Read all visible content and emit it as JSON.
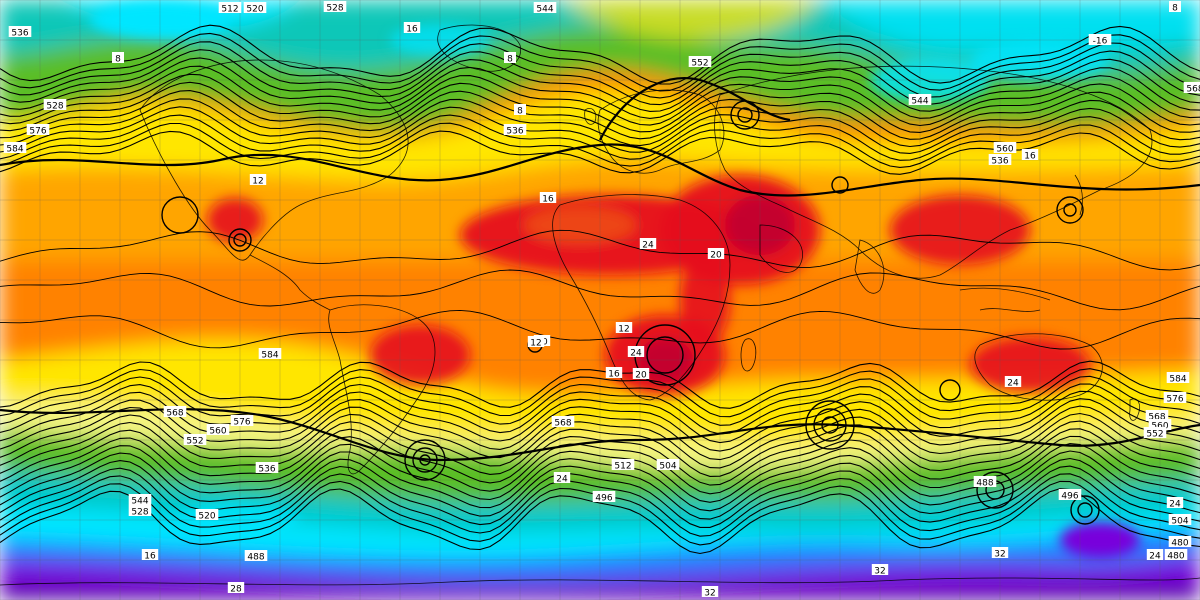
{
  "map": {
    "colors": {
      "deep_red": "#c00030",
      "red": "#e60a1e",
      "orange_red": "#f05a14",
      "orange": "#ff8200",
      "light_orange": "#ffa500",
      "yellow": "#ffe600",
      "pale_yellow": "#f5f582",
      "lime": "#c8dc28",
      "green": "#5abe28",
      "teal": "#00c8c8",
      "cyan": "#00e6ff",
      "blue": "#1e78ff",
      "purple": "#7800dc",
      "deep_purple": "#4b00a0",
      "contour": "#000000",
      "grid": "#5a5a5a"
    },
    "contour_labels": [
      "512",
      "520",
      "528",
      "544",
      "8",
      "536",
      "16",
      "552",
      "568",
      "8",
      "8",
      "536",
      "544",
      "536",
      "528",
      "560",
      "16",
      "576",
      "584",
      "8",
      "12",
      "16",
      "24",
      "20",
      "12",
      "12",
      "16",
      "20",
      "24",
      "24",
      "584",
      "568",
      "576",
      "560",
      "552",
      "544",
      "528",
      "520",
      "512",
      "504",
      "496",
      "488",
      "480",
      "24",
      "24",
      "32",
      "32",
      "32",
      "28",
      "24",
      "496",
      "504",
      "488",
      "480",
      "20",
      "584",
      "576",
      "568",
      "560",
      "568",
      "552",
      "536",
      "16",
      "-16"
    ],
    "land_labels": []
  }
}
